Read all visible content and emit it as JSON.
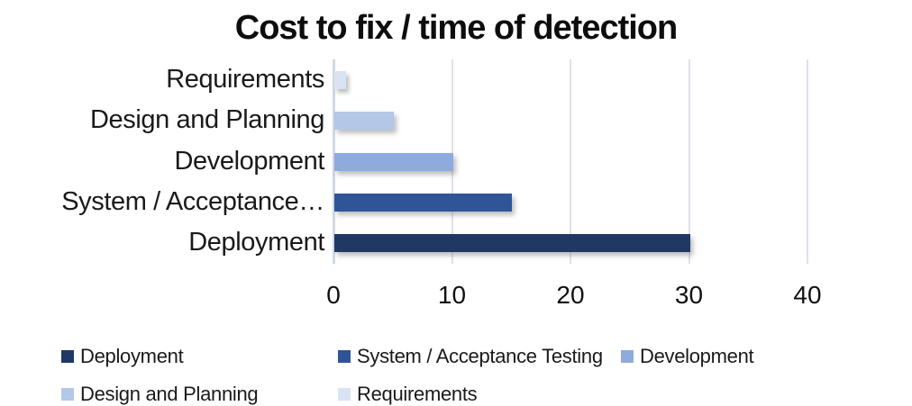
{
  "chart_data": {
    "type": "bar",
    "orientation": "horizontal",
    "title": "Cost to fix / time of detection",
    "categories": [
      "Requirements",
      "Design and Planning",
      "Development",
      "System / Acceptance…",
      "Deployment"
    ],
    "values": [
      1,
      5,
      10,
      15,
      30
    ],
    "colors": [
      "#dae3f3",
      "#b4c7e7",
      "#8faadc",
      "#2f5597",
      "#1f3864"
    ],
    "xlim": [
      0,
      40
    ],
    "xticks": [
      0,
      10,
      20,
      30,
      40
    ],
    "grid": "vertical",
    "background": "#ffffff",
    "gridline_color": "#dde1ea",
    "legend": {
      "position": "bottom",
      "entries": [
        {
          "label": "Deployment",
          "color": "#1f3864"
        },
        {
          "label": "System / Acceptance Testing",
          "color": "#2f5597"
        },
        {
          "label": "Development",
          "color": "#8faadc"
        },
        {
          "label": "Design and Planning",
          "color": "#b4c7e7"
        },
        {
          "label": "Requirements",
          "color": "#dae3f3"
        }
      ]
    }
  }
}
